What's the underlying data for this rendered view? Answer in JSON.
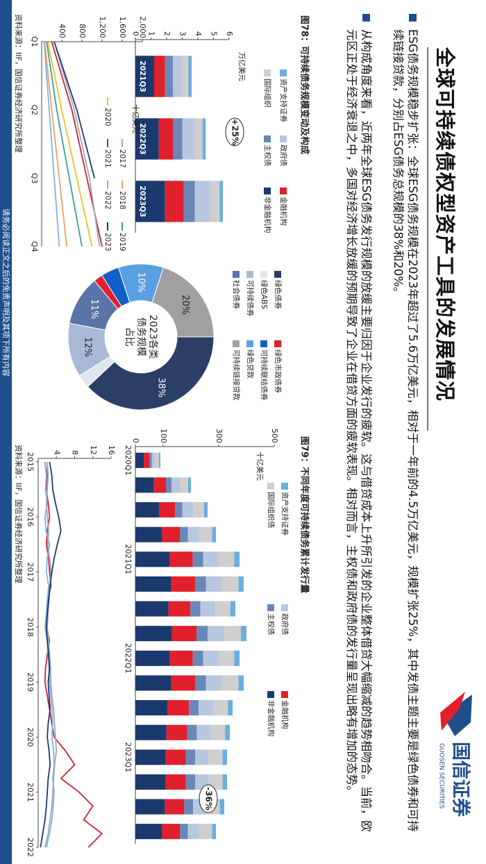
{
  "header": {
    "title": "全球可持续债权型资产工具的发展情况",
    "logo_cn": "国信证券",
    "logo_en": "GUOSEN SECURITIES"
  },
  "bullets": [
    "ESG债务规模稳步扩张：全球ESG债务规模在2023年超过了5.6万亿美元，相对于一年前的4.5万亿美元，规模扩张25%，其中发债主题主要是绿色债券和可持续链接贷款，分别占ESG债务总规模的38%和20%。",
    "从构成角度来看，近两年全球ESG债务发行规模的放缓主要归因于企业发行的疲软。这与借贷成本上升所引发的企业整体借贷大幅缩减的趋势相吻合。当前，欧元区正处于经济衰退之中，多国对经济增长放缓的预期导致了企业在借贷方面的疲软表现。相对而言，主权债和政府债的发行量呈现出略有增加的态势。"
  ],
  "figures": [
    {
      "title": "图78：可持续债务规模变动及构成",
      "source": "资料来源：IIF，国信证券经济研究所整理"
    },
    {
      "title": "图79：不同年度可持续债务累计发行量",
      "source": "资料来源：IIF，国信证券经济研究所整理"
    }
  ],
  "footer": "请务必阅读正文之后的免责声明及其项下所有内容",
  "chart_data": [
    {
      "type": "bar",
      "stacked": true,
      "unit": "万亿美元",
      "annotation": "+25%",
      "categories": [
        "2021Q3",
        "2022Q3",
        "2023Q3"
      ],
      "series": [
        {
          "name": "非金融机构",
          "color": "#1a3a6e",
          "values": [
            1.2,
            1.5,
            1.9
          ]
        },
        {
          "name": "金融机构",
          "color": "#e0202c",
          "values": [
            0.7,
            0.9,
            1.2
          ]
        },
        {
          "name": "主权债",
          "color": "#6b87b8",
          "values": [
            0.5,
            0.6,
            0.7
          ]
        },
        {
          "name": "政府债",
          "color": "#b8c7e0",
          "values": [
            0.6,
            0.8,
            1.0
          ]
        },
        {
          "name": "国际组织",
          "color": "#cfcfcf",
          "values": [
            0.4,
            0.5,
            0.6
          ]
        },
        {
          "name": "资产支持证券",
          "color": "#6aaee0",
          "values": [
            0.2,
            0.2,
            0.2
          ]
        }
      ],
      "ylim": [
        0,
        6
      ],
      "yticks": [
        0,
        1,
        2,
        3,
        4,
        5,
        6
      ]
    },
    {
      "type": "line",
      "unit": "十亿美元",
      "categories": [
        "Q1",
        "Q2",
        "Q3",
        "Q4"
      ],
      "series": [
        {
          "name": "2017",
          "color": "#7fb3e0",
          "values": [
            50,
            150,
            250,
            350
          ]
        },
        {
          "name": "2018",
          "color": "#f0a060",
          "values": [
            60,
            200,
            350,
            500
          ]
        },
        {
          "name": "2019",
          "color": "#3aa090",
          "values": [
            100,
            300,
            550,
            800
          ]
        },
        {
          "name": "2020",
          "color": "#f0c020",
          "values": [
            120,
            400,
            700,
            1000
          ]
        },
        {
          "name": "2021",
          "color": "#d02030",
          "values": [
            200,
            600,
            900,
            1200
          ]
        },
        {
          "name": "2022",
          "color": "#a0a8b8",
          "values": [
            250,
            650,
            950,
            1150
          ]
        },
        {
          "name": "2023",
          "color": "#1a3a6e",
          "values": [
            250,
            700,
            1050,
            null
          ]
        }
      ],
      "ylim": [
        0,
        2000
      ],
      "yticks": [
        400,
        800,
        {
          "value": 1200,
          "label": "1,200"
        },
        {
          "value": 1600,
          "label": "1,600"
        },
        {
          "value": 2000,
          "label": "2,000"
        }
      ]
    },
    {
      "type": "pie",
      "donut": true,
      "center_label": [
        "2023各类",
        "债务规模",
        "占比"
      ],
      "categories": [
        "绿色债券",
        "绿色ABS",
        "可持续债券",
        "社会债券",
        "绿色市政债券",
        "可持续联结债券",
        "绿色贷款",
        "可持续链接贷款"
      ],
      "values": [
        38,
        3,
        12,
        11,
        2,
        4,
        10,
        20
      ],
      "value_labels": [
        "38%",
        null,
        "12%",
        "11%",
        null,
        null,
        "10%",
        "20%"
      ],
      "colors": [
        "#2b3f66",
        "#dfe6f0",
        "#a9b9d6",
        "#5a74a8",
        "#e02030",
        "#1060c8",
        "#5aa0e0",
        "#a0a0a0"
      ]
    },
    {
      "type": "bar",
      "stacked": true,
      "unit": "十亿美元",
      "annotation": "-36%",
      "categories": [
        "2020Q1",
        null,
        null,
        null,
        "2021Q1",
        null,
        null,
        null,
        "2022Q1",
        null,
        null,
        null,
        "2023Q1",
        null,
        null,
        null
      ],
      "series": [
        {
          "name": "非金融机构",
          "color": "#1a3a6e",
          "values": [
            30,
            66,
            86,
            96,
            124,
            129,
            119,
            132,
            124,
            129,
            116,
            112,
            109,
            109,
            106,
            96
          ]
        },
        {
          "name": "金融机构",
          "color": "#e0202c",
          "values": [
            20,
            44,
            57,
            64,
            83,
            86,
            79,
            88,
            83,
            86,
            77,
            75,
            73,
            73,
            70,
            64
          ]
        },
        {
          "name": "主权债",
          "color": "#6b87b8",
          "values": [
            9,
            20,
            26,
            29,
            37,
            39,
            36,
            40,
            37,
            39,
            35,
            34,
            33,
            33,
            32,
            29
          ]
        },
        {
          "name": "政府债",
          "color": "#b8c7e0",
          "values": [
            13,
            30,
            39,
            43,
            56,
            58,
            54,
            60,
            56,
            58,
            52,
            51,
            49,
            49,
            48,
            43
          ]
        },
        {
          "name": "国际组织债",
          "color": "#cfcfcf",
          "values": [
            13,
            30,
            39,
            44,
            56,
            59,
            54,
            60,
            56,
            59,
            53,
            51,
            50,
            50,
            48,
            44
          ]
        },
        {
          "name": "资产支持证券",
          "color": "#6aaee0",
          "values": [
            5,
            10,
            13,
            14,
            19,
            19,
            18,
            20,
            19,
            19,
            17,
            17,
            16,
            16,
            16,
            14
          ]
        }
      ],
      "ylim": [
        0,
        500
      ],
      "yticks": [
        0,
        100,
        300,
        500
      ]
    },
    {
      "type": "line",
      "x": [
        2015,
        2015.25,
        2015.5,
        2015.75,
        2016,
        2016.25,
        2016.5,
        2016.75,
        2017,
        2017.25,
        2017.5,
        2017.75,
        2018,
        2018.25,
        2018.5,
        2018.75,
        2019,
        2019.25,
        2019.5,
        2019.75,
        2020,
        2020.25,
        2020.5,
        2020.75,
        2021,
        2021.25,
        2021.5,
        2021.75,
        2022
      ],
      "series": [
        {
          "color": "#d02030",
          "values": [
            1.5,
            2,
            1.8,
            2.2,
            2.5,
            2,
            1.8,
            2.3,
            2.5,
            2.8,
            2.2,
            2,
            1.8,
            2.5,
            2,
            1.6,
            1.5,
            2,
            2.5,
            3,
            3.5,
            6,
            8,
            5,
            9,
            12,
            10,
            14,
            11
          ]
        },
        {
          "color": "#7fb3e0",
          "values": [
            1.5,
            1.8,
            1.6,
            2,
            1.5,
            1.7,
            2.5,
            2,
            1.8,
            2.3,
            2,
            1.8,
            1.5,
            2,
            2.2,
            2.4,
            2.5,
            2.8,
            3,
            3.2,
            3,
            3.4,
            3.5,
            3.2,
            3.5,
            3.3,
            3,
            2.5,
            1.8
          ]
        },
        {
          "color": "#a0a8b8",
          "values": [
            2,
            2.2,
            2,
            1.8,
            2,
            2.3,
            2.1,
            2.5,
            2.8,
            2.6,
            2.4,
            2.2,
            2,
            2.3,
            2.5,
            2.7,
            2.8,
            3,
            3.4,
            3.6,
            3.8,
            4,
            3.6,
            3.4,
            3.2,
            3,
            2.6,
            2.2,
            1.5
          ]
        },
        {
          "color": "#1a3a6e",
          "values": [
            2.5,
            3,
            3.2,
            3.8,
            4.5,
            5,
            4.2,
            3.5,
            3,
            2.6,
            2.3,
            2,
            1.8,
            2,
            2.3,
            2.5,
            2.2,
            2.4,
            2.6,
            2.2,
            2,
            2.4,
            2.6,
            2.2,
            2,
            1.8,
            1.5,
            1,
            0.5
          ]
        }
      ],
      "xlim": [
        2015,
        2022
      ],
      "xticks": [
        2015,
        2016,
        2017,
        2018,
        2019,
        2020,
        2021,
        2022
      ],
      "ylim": [
        0,
        16
      ],
      "yticks": [
        4,
        8,
        12,
        16
      ]
    }
  ]
}
